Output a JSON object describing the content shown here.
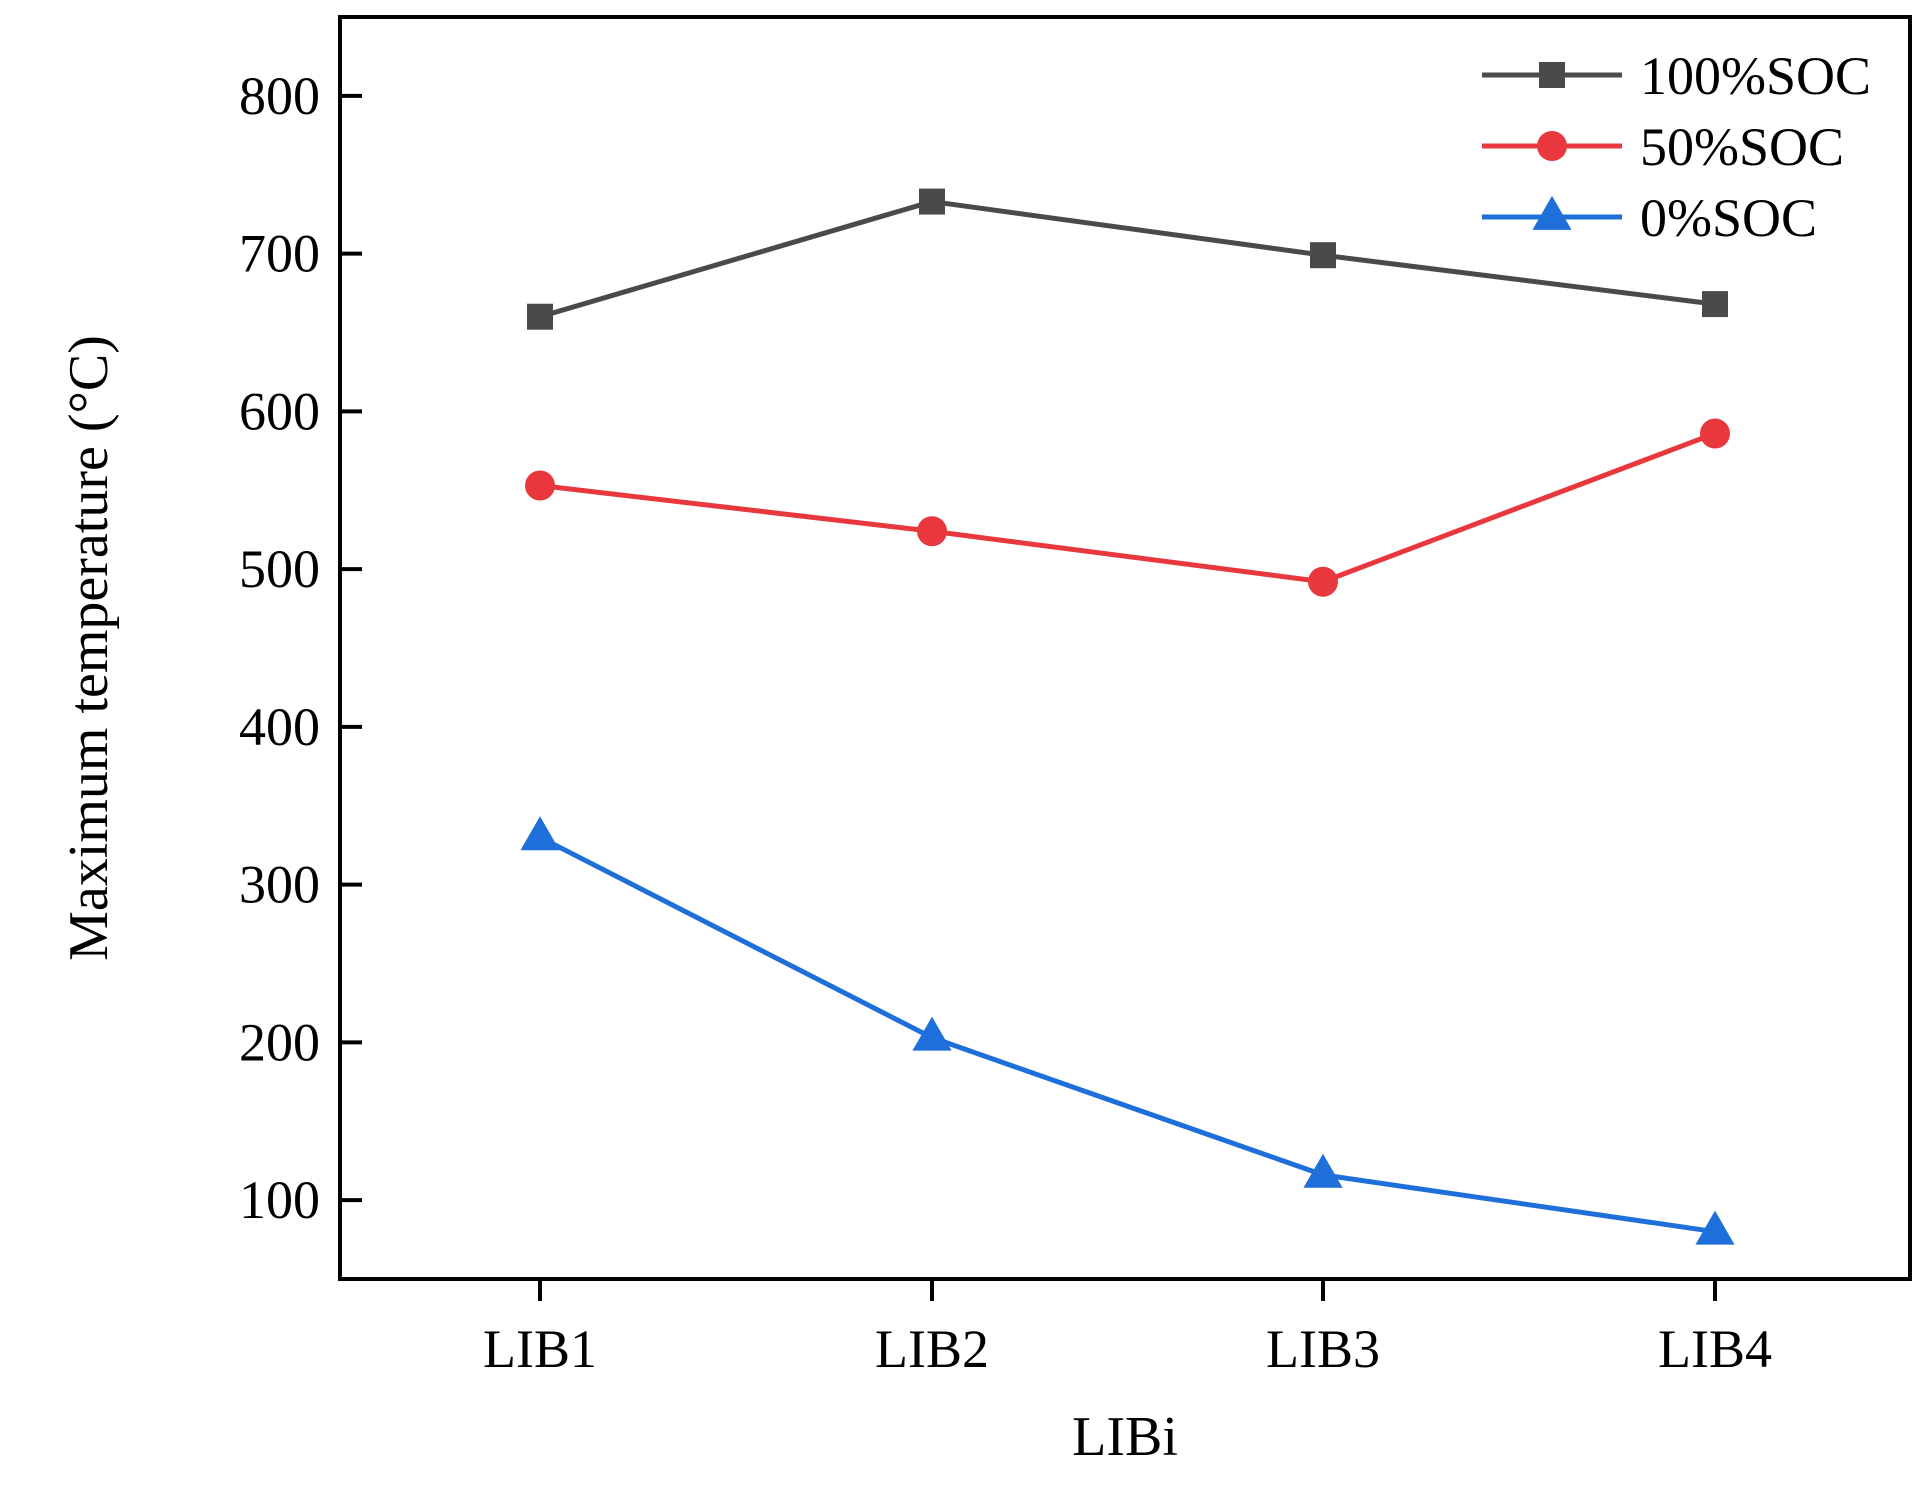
{
  "chart_data": {
    "type": "line",
    "title": "",
    "xlabel": "LIBi",
    "ylabel": "Maximum temperature (°C)",
    "categories": [
      "LIB1",
      "LIB2",
      "LIB3",
      "LIB4"
    ],
    "ylim": [
      50,
      850
    ],
    "yticks": [
      100,
      200,
      300,
      400,
      500,
      600,
      700,
      800
    ],
    "ytick_labels": [
      "100",
      "200",
      "300",
      "400",
      "500",
      "600",
      "700",
      "800"
    ],
    "grid": false,
    "legend_position": "top-right",
    "series": [
      {
        "name": "100%SOC",
        "marker": "square",
        "color": "#4a4a4a",
        "values": [
          660,
          733,
          699,
          668
        ]
      },
      {
        "name": "50%SOC",
        "marker": "circle",
        "color": "#e8383d",
        "values": [
          553,
          524,
          492,
          586
        ]
      },
      {
        "name": "0%SOC",
        "marker": "triangle",
        "color": "#1f6fdb",
        "values": [
          330,
          203,
          116,
          80
        ]
      }
    ]
  }
}
